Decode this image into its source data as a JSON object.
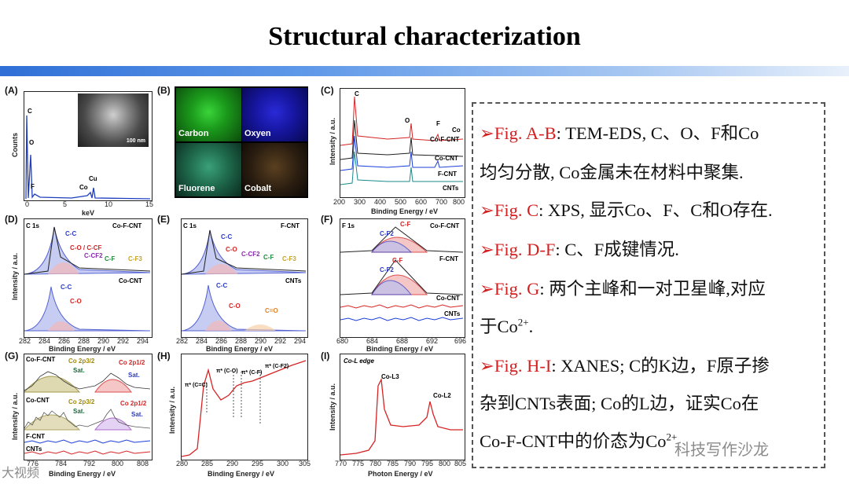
{
  "title": "Structural characterization",
  "panels": {
    "A": {
      "label": "(A)",
      "ylabel": "Counts",
      "xlabel": "keV",
      "ticks": [
        "0",
        "5",
        "10",
        "15"
      ],
      "peaks": [
        "C",
        "O",
        "F",
        "Co",
        "Cu"
      ],
      "scale": "100 nm"
    },
    "B": {
      "label": "(B)",
      "tiles": [
        "Carbon",
        "Oxyen",
        "Fluorene",
        "Cobalt"
      ]
    },
    "C": {
      "label": "(C)",
      "ylabel": "Intensity / a.u.",
      "xlabel": "Binding Energy / eV",
      "ticks": [
        "200",
        "300",
        "400",
        "500",
        "600",
        "700",
        "800"
      ],
      "peaks": [
        "C",
        "O",
        "F",
        "Co"
      ],
      "series": [
        "Co-F-CNT",
        "Co-CNT",
        "F-CNT",
        "CNTs"
      ]
    },
    "D": {
      "label": "(D)",
      "ylabel": "Intensity / a.u.",
      "xlabel": "Binding Energy / eV",
      "core": "C 1s",
      "ticks": [
        "282",
        "284",
        "286",
        "288",
        "290",
        "292",
        "294"
      ],
      "top": "Co-F-CNT",
      "bottom": "Co-CNT",
      "comps": [
        "C-C",
        "C-O / C-CF",
        "C-CF2",
        "C-F",
        "C-F3",
        "C-C",
        "C-O"
      ]
    },
    "E": {
      "label": "(E)",
      "core": "C 1s",
      "xlabel": "Binding Energy / eV",
      "ticks": [
        "282",
        "284",
        "286",
        "288",
        "290",
        "292",
        "294"
      ],
      "top": "F-CNT",
      "bottom": "CNTs",
      "comps": [
        "C-C",
        "C-O",
        "C-CF2",
        "C-F",
        "C-F3",
        "C-C",
        "C-O",
        "C=O"
      ]
    },
    "F": {
      "label": "(F)",
      "core": "F 1s",
      "xlabel": "Binding Energy / eV",
      "ticks": [
        "680",
        "684",
        "688",
        "692",
        "696"
      ],
      "series": [
        "Co-F-CNT",
        "F-CNT",
        "Co-CNT",
        "CNTs"
      ],
      "comps": [
        "C-F",
        "C-F2",
        "C-F",
        "C-F2"
      ]
    },
    "G": {
      "label": "(G)",
      "ylabel": "Intensity / a.u.",
      "xlabel": "Binding Energy / eV",
      "ticks": [
        "776",
        "784",
        "792",
        "800",
        "808"
      ],
      "series": [
        "Co-F-CNT",
        "Co-CNT",
        "F-CNT",
        "CNTs"
      ],
      "comps": [
        "Co 2p3/2",
        "Sat.",
        "Co 2p1/2",
        "Sat.",
        "Co 2p3/2",
        "Sat.",
        "Co 2p1/2",
        "Sat."
      ]
    },
    "H": {
      "label": "(H)",
      "ylabel": "Intensity / a.u.",
      "xlabel": "Binding Energy / eV",
      "ticks": [
        "280",
        "285",
        "290",
        "295",
        "300",
        "305"
      ],
      "comps": [
        "π* (C=C)",
        "π* (C-O)",
        "π* (C-F)",
        "π* (C-F2)"
      ]
    },
    "I": {
      "label": "(I)",
      "title": "Co-L edge",
      "ylabel": "Intensity / a.u.",
      "xlabel": "Photon Energy / eV",
      "ticks": [
        "770",
        "775",
        "780",
        "785",
        "790",
        "795",
        "800",
        "805"
      ],
      "comps": [
        "Co-L3",
        "Co-L2"
      ]
    }
  },
  "text": {
    "l1_fig": "➢Fig. A-B",
    "l1_rest": ": TEM-EDS, C、O、F和Co",
    "l2": "均匀分散, Co金属未在材料中聚集.",
    "l3_fig": "➢Fig. C",
    "l3_rest": ": XPS, 显示Co、F、C和O存在.",
    "l4_fig": "➢Fig. D-F",
    "l4_rest": ": C、F成键情况.",
    "l5_fig": "➢Fig. G",
    "l5_rest": ": 两个主峰和一对卫星峰,对应",
    "l6": "于Co",
    "l6_sup": "2+",
    "l6_end": ".",
    "l7_fig": "➢Fig. H-I",
    "l7_rest": ": XANES; C的K边，F原子掺",
    "l8": "杂到CNTs表面; Co的L边，证实Co在",
    "l9": "Co-F-CNT中的价态为Co",
    "l9_sup": "2+"
  },
  "watermarks": {
    "left": "大视频",
    "right": "科技写作沙龙"
  },
  "colors": {
    "accent_red": "#d42020",
    "bar_blue": "#2f6fd6"
  }
}
